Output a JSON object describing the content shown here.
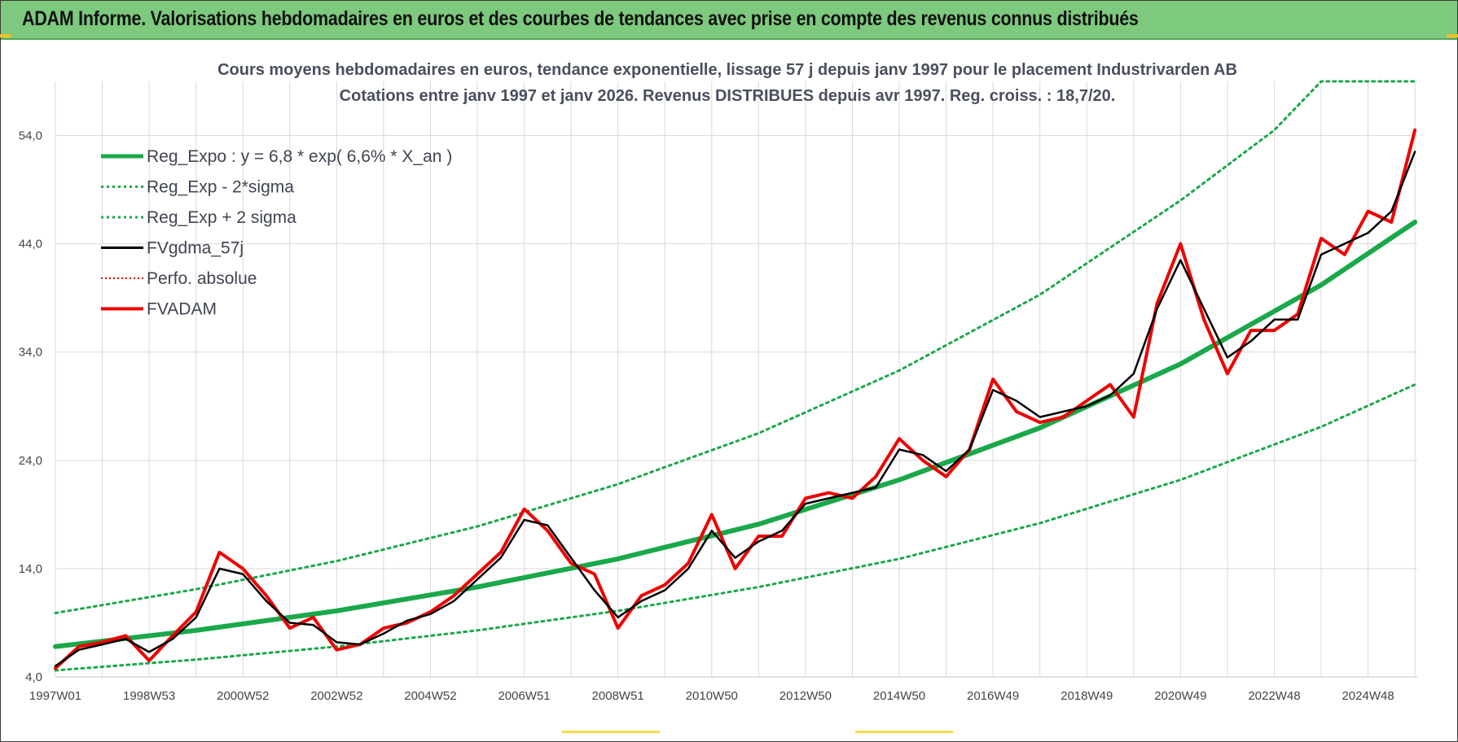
{
  "header": {
    "title": "ADAM Informe. Valorisations hebdomadaires en euros et des courbes de tendances avec prise en compte des revenus connus distribués"
  },
  "colors": {
    "header_bg": "#7dc97d",
    "reg_expo": "#1aa84a",
    "sigma": "#1aa84a",
    "fvgdma": "#000000",
    "perfo": "#e00000",
    "fvadam": "#ee0000",
    "grid": "#d9d9d9"
  },
  "chart_data": {
    "type": "line",
    "title_line1": "Cours moyens hebdomadaires en euros, tendance exponentielle, lissage 57 j depuis janv 1997 pour le placement Industrivarden AB",
    "title_line2": "Cotations entre janv 1997 et janv 2026. Revenus DISTRIBUES depuis avr 1997.  Reg. croiss. : 18,7/20.",
    "ylim": [
      4.0,
      59.0
    ],
    "y_ticks": [
      "4,0",
      "14,0",
      "24,0",
      "34,0",
      "44,0",
      "54,0"
    ],
    "y_tick_values": [
      4,
      14,
      24,
      34,
      44,
      54
    ],
    "xlim": [
      1997.0,
      2026.05
    ],
    "x_tick_labels": [
      "1997W01",
      "1998W53",
      "2000W52",
      "2002W52",
      "2004W52",
      "2006W51",
      "2008W51",
      "2010W50",
      "2012W50",
      "2014W50",
      "2016W49",
      "2018W49",
      "2020W49",
      "2022W48",
      "2024W48"
    ],
    "x_tick_positions": [
      1997.0,
      1999.0,
      2001.0,
      2003.0,
      2005.0,
      2007.0,
      2009.0,
      2011.0,
      2013.0,
      2015.0,
      2017.0,
      2019.0,
      2021.0,
      2023.0,
      2025.0
    ],
    "grid": true,
    "legend_position": "top-left",
    "legend": [
      {
        "label": "Reg_Expo : y = 6,8 * exp( 6,6% *  X_an )",
        "style": "solid-thick-green"
      },
      {
        "label": "Reg_Exp - 2*sigma",
        "style": "dotted-green"
      },
      {
        "label": "Reg_Exp + 2 sigma",
        "style": "dotted-green"
      },
      {
        "label": "FVgdma_57j",
        "style": "solid-black"
      },
      {
        "label": "Perfo. absolue",
        "style": "dotted-red"
      },
      {
        "label": "FVADAM",
        "style": "solid-thick-red"
      }
    ],
    "series": [
      {
        "name": "Reg_Expo : y = 6,8 * exp( 6,6% *  X_an )",
        "x": [
          1997.0,
          2000.0,
          2003.0,
          2006.0,
          2009.0,
          2012.0,
          2015.0,
          2018.0,
          2021.0,
          2024.0,
          2026.0
        ],
        "y": [
          6.8,
          8.3,
          10.1,
          12.3,
          14.9,
          18.1,
          22.2,
          27.0,
          32.9,
          40.2,
          46.0
        ]
      },
      {
        "name": "Reg_Exp - 2*sigma",
        "x": [
          1997.0,
          2000.0,
          2003.0,
          2006.0,
          2009.0,
          2012.0,
          2015.0,
          2018.0,
          2021.0,
          2024.0,
          2026.0
        ],
        "y": [
          4.6,
          5.6,
          6.8,
          8.3,
          10.1,
          12.3,
          14.9,
          18.2,
          22.2,
          27.1,
          31.0
        ]
      },
      {
        "name": "Reg_Exp + 2 sigma",
        "x": [
          1997.0,
          2000.0,
          2003.0,
          2006.0,
          2009.0,
          2012.0,
          2015.0,
          2018.0,
          2021.0,
          2023.0,
          2024.0,
          2026.0
        ],
        "y": [
          9.9,
          12.1,
          14.7,
          17.9,
          21.8,
          26.5,
          32.3,
          39.3,
          48.0,
          54.5,
          59.0,
          59.0
        ]
      },
      {
        "name": "FVgdma_57j",
        "x": [
          1997.0,
          1997.5,
          1998.0,
          1998.5,
          1999.0,
          1999.5,
          2000.0,
          2000.5,
          2001.0,
          2001.5,
          2002.0,
          2002.5,
          2003.0,
          2003.5,
          2004.0,
          2004.5,
          2005.0,
          2005.5,
          2006.0,
          2006.5,
          2007.0,
          2007.5,
          2008.0,
          2008.5,
          2009.0,
          2009.5,
          2010.0,
          2010.5,
          2011.0,
          2011.5,
          2012.0,
          2012.5,
          2013.0,
          2013.5,
          2014.0,
          2014.5,
          2015.0,
          2015.5,
          2016.0,
          2016.5,
          2017.0,
          2017.5,
          2018.0,
          2018.5,
          2019.0,
          2019.5,
          2020.0,
          2020.5,
          2021.0,
          2021.5,
          2022.0,
          2022.5,
          2023.0,
          2023.5,
          2024.0,
          2024.5,
          2025.0,
          2025.5,
          2026.0
        ],
        "y": [
          5.0,
          6.5,
          7.0,
          7.5,
          6.3,
          7.5,
          9.5,
          14.0,
          13.5,
          11.0,
          9.0,
          8.8,
          7.2,
          7.0,
          8.0,
          9.2,
          9.8,
          11.0,
          13.0,
          15.0,
          18.5,
          18.0,
          15.0,
          12.0,
          9.5,
          11.0,
          12.0,
          14.0,
          17.5,
          15.0,
          16.5,
          17.5,
          20.0,
          20.5,
          21.0,
          21.5,
          25.0,
          24.5,
          23.0,
          25.0,
          30.5,
          29.5,
          28.0,
          28.5,
          29.0,
          30.0,
          32.0,
          38.0,
          42.5,
          38.0,
          33.5,
          35.0,
          37.0,
          37.0,
          43.0,
          44.0,
          45.0,
          47.0,
          52.5
        ]
      },
      {
        "name": "FVADAM",
        "x": [
          1997.0,
          1997.5,
          1998.0,
          1998.5,
          1999.0,
          1999.5,
          2000.0,
          2000.5,
          2001.0,
          2001.5,
          2002.0,
          2002.5,
          2003.0,
          2003.5,
          2004.0,
          2004.5,
          2005.0,
          2005.5,
          2006.0,
          2006.5,
          2007.0,
          2007.5,
          2008.0,
          2008.5,
          2009.0,
          2009.5,
          2010.0,
          2010.5,
          2011.0,
          2011.5,
          2012.0,
          2012.5,
          2013.0,
          2013.5,
          2014.0,
          2014.5,
          2015.0,
          2015.5,
          2016.0,
          2016.5,
          2017.0,
          2017.5,
          2018.0,
          2018.5,
          2019.0,
          2019.5,
          2020.0,
          2020.5,
          2021.0,
          2021.5,
          2022.0,
          2022.5,
          2023.0,
          2023.5,
          2024.0,
          2024.5,
          2025.0,
          2025.5,
          2026.0
        ],
        "y": [
          4.8,
          6.8,
          7.2,
          7.8,
          5.5,
          7.8,
          10.0,
          15.5,
          14.0,
          11.5,
          8.5,
          9.5,
          6.5,
          7.0,
          8.5,
          9.0,
          10.0,
          11.5,
          13.5,
          15.5,
          19.5,
          17.5,
          14.5,
          13.5,
          8.5,
          11.5,
          12.5,
          14.5,
          19.0,
          14.0,
          17.0,
          17.0,
          20.5,
          21.0,
          20.5,
          22.5,
          26.0,
          24.0,
          22.5,
          25.0,
          31.5,
          28.5,
          27.5,
          28.0,
          29.5,
          31.0,
          28.0,
          38.5,
          44.0,
          37.0,
          32.0,
          36.0,
          36.0,
          37.5,
          44.5,
          43.0,
          47.0,
          46.0,
          54.5
        ]
      }
    ]
  }
}
